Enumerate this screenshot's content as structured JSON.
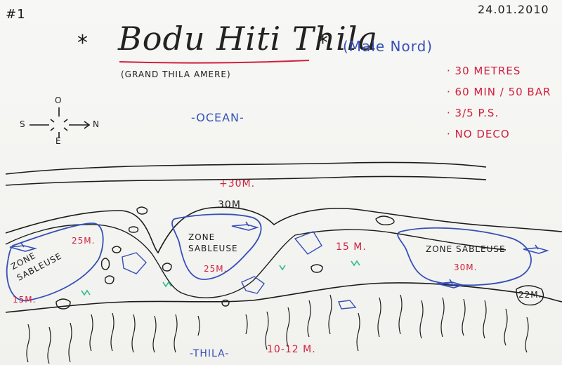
{
  "header": {
    "number": "#1",
    "date": "24.01.2010",
    "title": "Bodu Hiti Thila",
    "star_left": "*",
    "star_right": "*",
    "region": "(Male Nord)",
    "subtitle": "(GRAND THILA AMERE)"
  },
  "notes": [
    "· 30 METRES",
    "· 60 MIN / 50 BAR",
    "· 3/5 P.S.",
    "· NO DECO"
  ],
  "compass": {
    "north": "N",
    "south": "S",
    "east": "E",
    "west": "O"
  },
  "labels": {
    "ocean": "-OCEAN-",
    "depth_outer": "+30M.",
    "depth_inner": "30M",
    "zone_left": "ZONE SABLEUSE",
    "zone_left_depth_top": "25M.",
    "zone_left_depth_bottom": "15M.",
    "zone_center": "ZONE SABLEUSE",
    "zone_center_depth": "25M.",
    "depth_right_mid": "15 M.",
    "zone_right": "ZONE SABLEUSE",
    "zone_right_depth": "30M.",
    "depth_right_rock": "22M.",
    "thila_label": "-THILA-",
    "thila_depth": "10-12 M."
  },
  "colors": {
    "ink": "#1b1b1b",
    "blue": "#3550b8",
    "red": "#d21f3c",
    "green": "#2fbf8f"
  }
}
